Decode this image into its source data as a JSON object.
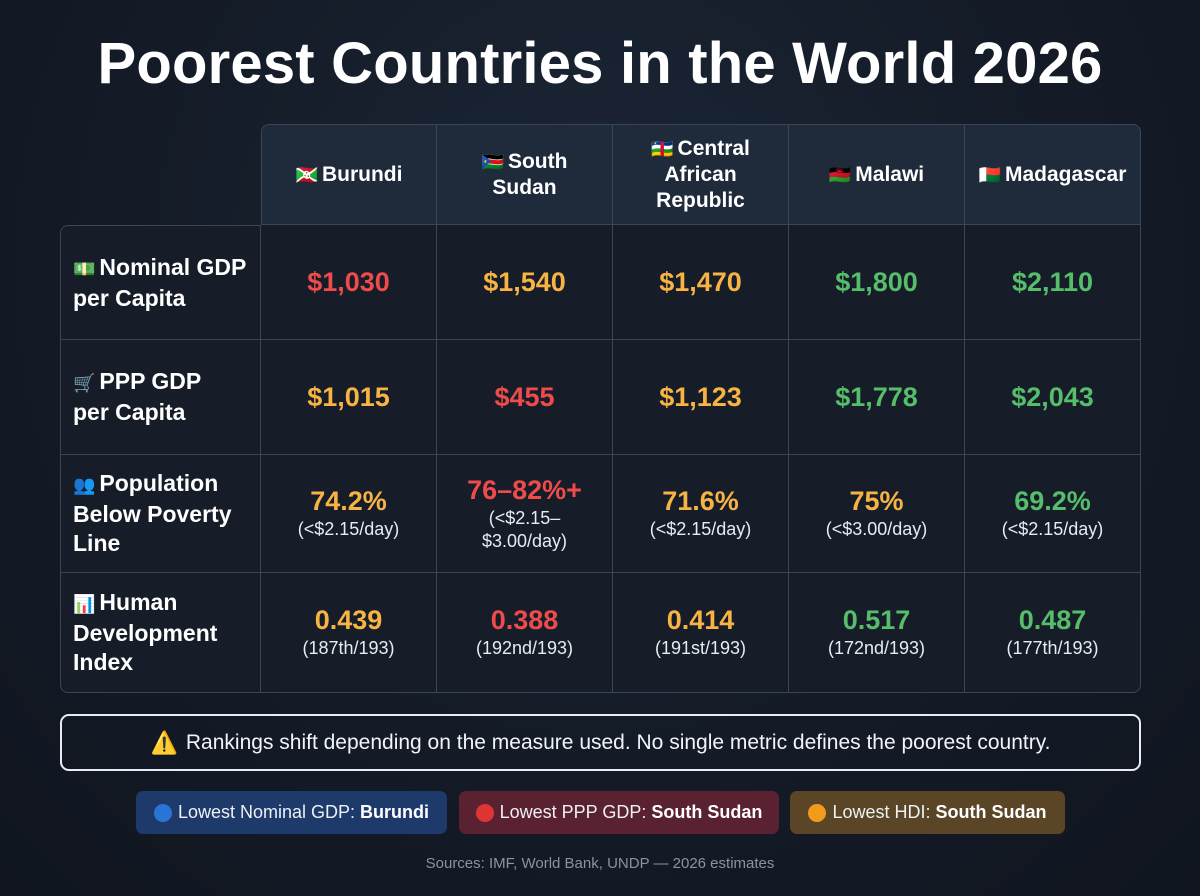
{
  "title": "Poorest Countries in the World 2026",
  "colors": {
    "red": "#ef4b4b",
    "orange": "#f7b442",
    "green": "#56bd6a"
  },
  "countries": [
    {
      "flag": "🇧🇮",
      "name": "Burundi"
    },
    {
      "flag": "🇸🇸",
      "name": "South Sudan"
    },
    {
      "flag": "🇨🇫",
      "name": "Central African Republic"
    },
    {
      "flag": "🇲🇼",
      "name": "Malawi"
    },
    {
      "flag": "🇲🇬",
      "name": "Madagascar"
    }
  ],
  "rows": [
    {
      "icon": "💵",
      "label": "Nominal GDP per Capita",
      "cells": [
        {
          "value": "$1,030",
          "tone": "red"
        },
        {
          "value": "$1,540",
          "tone": "orange"
        },
        {
          "value": "$1,470",
          "tone": "orange"
        },
        {
          "value": "$1,800",
          "tone": "green"
        },
        {
          "value": "$2,110",
          "tone": "green"
        }
      ]
    },
    {
      "icon": "🛒",
      "label": "PPP GDP per Capita",
      "cells": [
        {
          "value": "$1,015",
          "tone": "orange"
        },
        {
          "value": "$455",
          "tone": "red"
        },
        {
          "value": "$1,123",
          "tone": "orange"
        },
        {
          "value": "$1,778",
          "tone": "green"
        },
        {
          "value": "$2,043",
          "tone": "green"
        }
      ]
    },
    {
      "icon": "👥",
      "label": "Population Below Poverty Line",
      "cells": [
        {
          "value": "74.2%",
          "sub": "(<$2.15/day)",
          "tone": "orange"
        },
        {
          "value": "76–82%+",
          "sub": "(<$2.15–$3.00/day)",
          "tone": "red"
        },
        {
          "value": "71.6%",
          "sub": "(<$2.15/day)",
          "tone": "orange"
        },
        {
          "value": "75%",
          "sub": "(<$3.00/day)",
          "tone": "orange"
        },
        {
          "value": "69.2%",
          "sub": "(<$2.15/day)",
          "tone": "green"
        }
      ]
    },
    {
      "icon": "📊",
      "label": "Human Development Index",
      "cells": [
        {
          "value": "0.439",
          "sub": "(187th/193)",
          "tone": "orange"
        },
        {
          "value": "0.388",
          "sub": "(192nd/193)",
          "tone": "red"
        },
        {
          "value": "0.414",
          "sub": "(191st/193)",
          "tone": "orange"
        },
        {
          "value": "0.517",
          "sub": "(172nd/193)",
          "tone": "green"
        },
        {
          "value": "0.487",
          "sub": "(177th/193)",
          "tone": "green"
        }
      ]
    }
  ],
  "note": {
    "icon": "⚠️",
    "text": "Rankings shift depending on the measure used. No single metric defines the poorest country."
  },
  "highlights": [
    {
      "dot_color": "#2a74d8",
      "label": "Lowest Nominal GDP:",
      "country": "Burundi"
    },
    {
      "dot_color": "#e03434",
      "label": "Lowest PPP GDP:",
      "country": "South Sudan"
    },
    {
      "dot_color": "#f29a1a",
      "label": "Lowest HDI:",
      "country": "South Sudan"
    }
  ],
  "sources": "Sources: IMF, World Bank, UNDP — 2026 estimates"
}
